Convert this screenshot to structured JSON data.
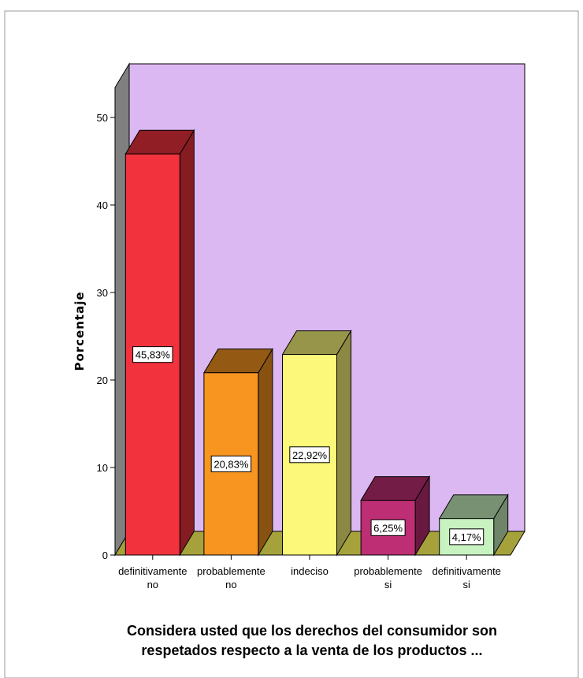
{
  "chart_data": {
    "type": "bar",
    "categories": [
      [
        "definitivamente",
        "no"
      ],
      [
        "probablemente",
        "no"
      ],
      [
        "indeciso"
      ],
      [
        "probablemente",
        "si"
      ],
      [
        "definitivamente",
        "si"
      ]
    ],
    "values": [
      45.83,
      20.83,
      22.92,
      6.25,
      4.17
    ],
    "data_labels": [
      "45,83%",
      "20,83%",
      "22,92%",
      "6,25%",
      "4,17%"
    ],
    "bar_colors": [
      "#f2323d",
      "#f79520",
      "#fbf87a",
      "#be2e74",
      "#c8f2c0"
    ],
    "xlabel": [
      "Considera usted que los derechos del consumidor son",
      "respetados respecto a la venta de los productos ..."
    ],
    "ylabel": "Porcentaje",
    "ylim": [
      0,
      50
    ],
    "yticks": [
      0,
      10,
      20,
      30,
      40,
      50
    ],
    "grid": false,
    "style": "3d",
    "background_color": "#dcb8f2",
    "floor_color": "#a5a23c",
    "wall_color": "#808080"
  }
}
